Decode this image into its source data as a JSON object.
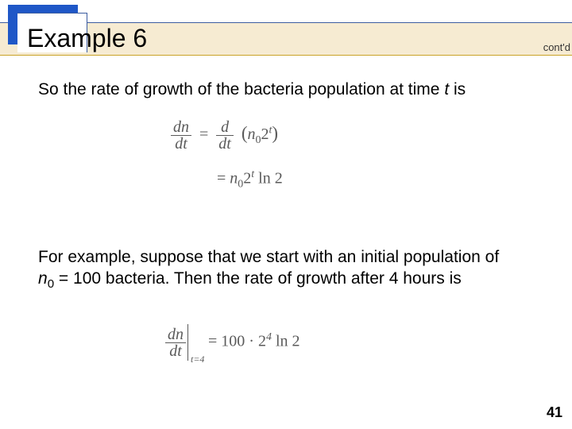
{
  "colors": {
    "band_bg": "#f6ebd2",
    "band_top_border": "#3b5ca0",
    "band_bottom_border": "#c9a227",
    "corner_back": "#1f57c7",
    "corner_front": "#ffffff",
    "math_color": "#5a5a5a",
    "text_color": "#000000"
  },
  "header": {
    "title": "Example 6",
    "contd": "cont'd"
  },
  "body": {
    "line1_a": "So the rate of growth of the bacteria population at time ",
    "line1_t": "t",
    "line1_b": " is",
    "line2_a": "For example, suppose that we start with an initial population of ",
    "line2_n": "n",
    "line2_sub0": "0",
    "line2_b": " = 100 bacteria. Then the rate of growth after 4 hours is"
  },
  "math": {
    "eq1": {
      "lhs_num": "dn",
      "lhs_den": "dt",
      "eq": "=",
      "rhs1_num": "d",
      "rhs1_den": "dt",
      "paren_open": "(",
      "n": "n",
      "zero": "0",
      "two": "2",
      "t": "t",
      "paren_close": ")",
      "line2_prefix": "= ",
      "ln2": " ln 2"
    },
    "eq2": {
      "lhs_num": "dn",
      "lhs_den": "dt",
      "at": "t=4",
      "eq": " = ",
      "rhs_a": "100 · 2",
      "rhs_exp": "4",
      "rhs_b": " ln 2"
    }
  },
  "page_number": "41",
  "typography": {
    "title_fontsize": 32,
    "body_fontsize": 21,
    "math_fontsize": 20,
    "contd_fontsize": 13,
    "page_num_fontsize": 18
  }
}
